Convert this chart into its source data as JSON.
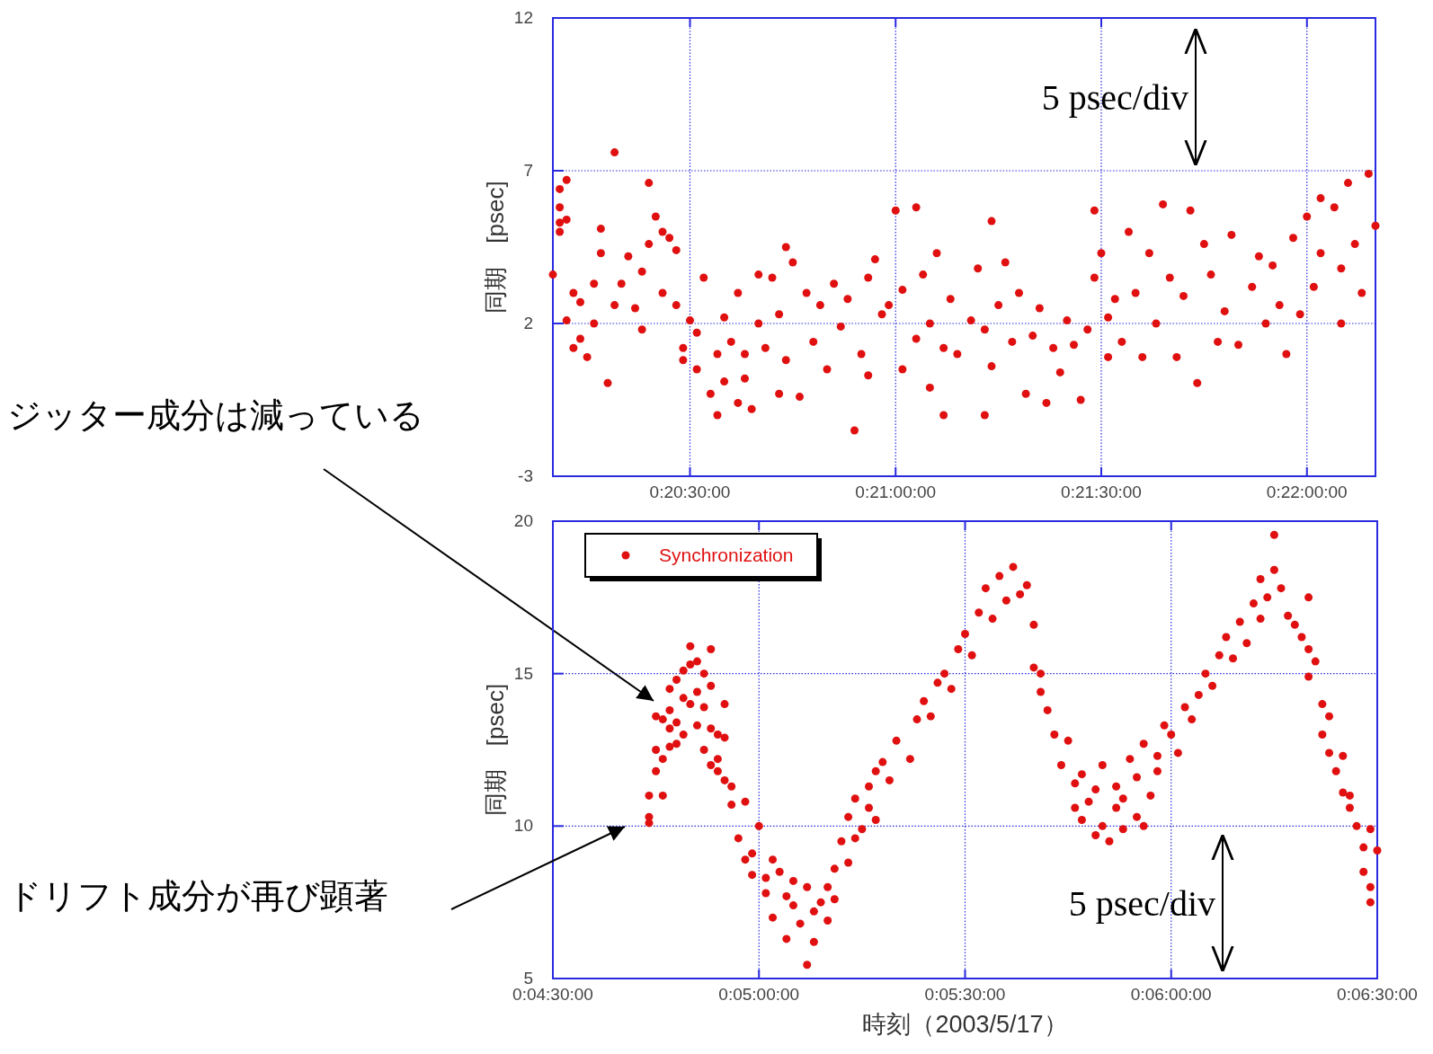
{
  "chart_data": [
    {
      "type": "scatter",
      "ylabel": "同期　[psec]",
      "annotations": [
        "5 psec/div",
        "ジッター成分は減っている"
      ],
      "xlim": [
        "2003-05-17T20:10",
        "2003-05-17T22:10"
      ],
      "ylim": [
        -3,
        12
      ],
      "xticks": [
        {
          "value": "2003-05-17T20:30",
          "label": "0:20:30:00"
        },
        {
          "value": "2003-05-17T21:00",
          "label": "0:21:00:00"
        },
        {
          "value": "2003-05-17T21:30",
          "label": "0:21:30:00"
        },
        {
          "value": "2003-05-17T22:00",
          "label": "0:22:00:00"
        }
      ],
      "yticks": [
        -3,
        2,
        7,
        12
      ],
      "grid": true,
      "marker": "circle",
      "legend": false,
      "series": [
        {
          "color": "#e01010",
          "x": [
            "2003-05-17T20:10",
            "2003-05-17T20:11",
            "2003-05-17T20:11",
            "2003-05-17T20:11",
            "2003-05-17T20:11",
            "2003-05-17T20:12",
            "2003-05-17T20:12",
            "2003-05-17T20:12",
            "2003-05-17T20:13",
            "2003-05-17T20:13",
            "2003-05-17T20:14",
            "2003-05-17T20:14",
            "2003-05-17T20:15",
            "2003-05-17T20:16",
            "2003-05-17T20:16",
            "2003-05-17T20:17",
            "2003-05-17T20:17",
            "2003-05-17T20:18",
            "2003-05-17T20:19",
            "2003-05-17T20:19",
            "2003-05-17T20:20",
            "2003-05-17T20:21",
            "2003-05-17T20:22",
            "2003-05-17T20:24",
            "2003-05-17T20:23",
            "2003-05-17T20:23",
            "2003-05-17T20:24",
            "2003-05-17T20:25",
            "2003-05-17T20:26",
            "2003-05-17T20:26",
            "2003-05-17T20:27",
            "2003-05-17T20:28",
            "2003-05-17T20:28",
            "2003-05-17T20:29",
            "2003-05-17T20:29",
            "2003-05-17T20:30",
            "2003-05-17T20:31",
            "2003-05-17T20:31",
            "2003-05-17T20:32",
            "2003-05-17T20:33",
            "2003-05-17T20:34",
            "2003-05-17T20:34",
            "2003-05-17T20:35",
            "2003-05-17T20:35",
            "2003-05-17T20:36",
            "2003-05-17T20:37",
            "2003-05-17T20:37",
            "2003-05-17T20:38",
            "2003-05-17T20:38",
            "2003-05-17T20:39",
            "2003-05-17T20:40",
            "2003-05-17T20:40",
            "2003-05-17T20:41",
            "2003-05-17T20:42",
            "2003-05-17T20:43",
            "2003-05-17T20:43",
            "2003-05-17T20:44",
            "2003-05-17T20:44",
            "2003-05-17T20:45",
            "2003-05-17T20:46",
            "2003-05-17T20:47",
            "2003-05-17T20:48",
            "2003-05-17T20:49",
            "2003-05-17T20:50",
            "2003-05-17T20:51",
            "2003-05-17T20:52",
            "2003-05-17T20:53",
            "2003-05-17T20:54",
            "2003-05-17T20:55",
            "2003-05-17T20:56",
            "2003-05-17T20:56",
            "2003-05-17T20:57",
            "2003-05-17T20:58",
            "2003-05-17T20:59",
            "2003-05-17T21:00",
            "2003-05-17T21:01",
            "2003-05-17T21:01",
            "2003-05-17T21:03",
            "2003-05-17T21:03",
            "2003-05-17T21:04",
            "2003-05-17T21:05",
            "2003-05-17T21:05",
            "2003-05-17T21:06",
            "2003-05-17T21:07",
            "2003-05-17T21:07",
            "2003-05-17T21:08",
            "2003-05-17T21:09",
            "2003-05-17T21:14",
            "2003-05-17T21:11",
            "2003-05-17T21:12",
            "2003-05-17T21:13",
            "2003-05-17T21:13",
            "2003-05-17T21:14",
            "2003-05-17T21:15",
            "2003-05-17T21:16",
            "2003-05-17T21:17",
            "2003-05-17T21:18",
            "2003-05-17T21:19",
            "2003-05-17T21:20",
            "2003-05-17T21:21",
            "2003-05-17T21:22",
            "2003-05-17T21:23",
            "2003-05-17T21:24",
            "2003-05-17T21:25",
            "2003-05-17T21:26",
            "2003-05-17T21:27",
            "2003-05-17T21:28",
            "2003-05-17T21:29",
            "2003-05-17T21:29",
            "2003-05-17T21:30",
            "2003-05-17T21:31",
            "2003-05-17T21:31",
            "2003-05-17T21:32",
            "2003-05-17T21:33",
            "2003-05-17T21:34",
            "2003-05-17T21:35",
            "2003-05-17T21:36",
            "2003-05-17T21:37",
            "2003-05-17T21:38",
            "2003-05-17T21:39",
            "2003-05-17T21:40",
            "2003-05-17T21:41",
            "2003-05-17T21:42",
            "2003-05-17T21:43",
            "2003-05-17T21:44",
            "2003-05-17T21:45",
            "2003-05-17T21:46",
            "2003-05-17T21:47",
            "2003-05-17T21:48",
            "2003-05-17T21:49",
            "2003-05-17T21:50",
            "2003-05-17T21:52",
            "2003-05-17T21:53",
            "2003-05-17T21:54",
            "2003-05-17T21:55",
            "2003-05-17T21:56",
            "2003-05-17T21:57",
            "2003-05-17T21:58",
            "2003-05-17T21:59",
            "2003-05-17T22:00",
            "2003-05-17T22:01",
            "2003-05-17T22:02",
            "2003-05-17T22:02",
            "2003-05-17T22:05",
            "2003-05-17T22:04",
            "2003-05-17T22:05",
            "2003-05-17T22:06",
            "2003-05-17T22:07",
            "2003-05-17T22:08",
            "2003-05-17T22:09",
            "2003-05-17T22:10"
          ],
          "values": [
            3.6,
            5.0,
            5.3,
            5.8,
            6.4,
            6.7,
            2.1,
            5.4,
            1.2,
            3.0,
            2.7,
            1.5,
            0.9,
            2.0,
            3.3,
            5.1,
            4.3,
            0.05,
            7.6,
            2.6,
            3.3,
            4.2,
            2.5,
            6.6,
            3.7,
            1.8,
            4.6,
            5.5,
            3.0,
            5.0,
            4.8,
            2.6,
            4.4,
            1.2,
            0.8,
            2.1,
            1.7,
            0.5,
            3.5,
            -0.3,
            1.0,
            -1.0,
            2.2,
            0.1,
            1.4,
            3.0,
            -0.6,
            1.0,
            0.2,
            -0.8,
            3.6,
            2.0,
            1.2,
            3.5,
            -0.3,
            2.3,
            4.5,
            0.8,
            4.0,
            -0.4,
            3.0,
            1.4,
            2.6,
            0.5,
            3.3,
            1.9,
            2.8,
            -1.5,
            1.0,
            3.5,
            0.3,
            4.1,
            2.3,
            2.6,
            5.7,
            3.1,
            0.5,
            5.8,
            1.5,
            3.6,
            -0.1,
            2.0,
            4.3,
            -1.0,
            1.2,
            2.8,
            1.0,
            5.35,
            2.1,
            3.8,
            -1.0,
            1.8,
            0.6,
            2.6,
            4.0,
            1.4,
            3.0,
            -0.3,
            1.6,
            2.5,
            -0.6,
            1.2,
            0.4,
            2.1,
            1.3,
            -0.5,
            1.8,
            3.5,
            5.7,
            4.3,
            2.2,
            0.9,
            2.8,
            1.4,
            5.0,
            3.0,
            0.9,
            4.3,
            2.0,
            5.9,
            3.5,
            0.9,
            2.9,
            5.7,
            0.05,
            4.6,
            3.6,
            1.4,
            2.4,
            4.9,
            1.3,
            3.2,
            4.2,
            2.0,
            3.9,
            2.6,
            1.0,
            4.8,
            2.3,
            5.5,
            3.2,
            6.1,
            4.3,
            2.0,
            5.8,
            3.8,
            6.6,
            4.6,
            3.0,
            6.9,
            5.2
          ]
        }
      ]
    },
    {
      "type": "scatter",
      "ylabel": "同期　[psec]",
      "xlabel": "時刻（2003/5/17）",
      "annotations": [
        "5 psec/div",
        "ドリフト成分が再び顕著"
      ],
      "xlim": [
        "2003-05-17T04:30",
        "2003-05-17T06:30"
      ],
      "ylim": [
        5,
        20
      ],
      "xticks": [
        {
          "value": "2003-05-17T04:30",
          "label": "0:04:30:00"
        },
        {
          "value": "2003-05-17T05:00",
          "label": "0:05:00:00"
        },
        {
          "value": "2003-05-17T05:30",
          "label": "0:05:30:00"
        },
        {
          "value": "2003-05-17T06:00",
          "label": "0:06:00:00"
        },
        {
          "value": "2003-05-17T06:30",
          "label": "0:06:30:00"
        }
      ],
      "yticks": [
        5,
        10,
        15,
        20
      ],
      "grid": true,
      "marker": "circle",
      "legend": "top left",
      "series": [
        {
          "name": "Synchronization",
          "color": "#e01010",
          "x": [
            "2003-05-17T04:44",
            "2003-05-17T04:44",
            "2003-05-17T04:44",
            "2003-05-17T04:45",
            "2003-05-17T04:45",
            "2003-05-17T04:45",
            "2003-05-17T04:46",
            "2003-05-17T04:46",
            "2003-05-17T04:46",
            "2003-05-17T04:47",
            "2003-05-17T04:47",
            "2003-05-17T04:47",
            "2003-05-17T04:47",
            "2003-05-17T04:48",
            "2003-05-17T04:48",
            "2003-05-17T04:48",
            "2003-05-17T04:49",
            "2003-05-17T04:49",
            "2003-05-17T04:49",
            "2003-05-17T04:50",
            "2003-05-17T04:50",
            "2003-05-17T04:50",
            "2003-05-17T04:51",
            "2003-05-17T04:51",
            "2003-05-17T04:51",
            "2003-05-17T04:52",
            "2003-05-17T04:52",
            "2003-05-17T04:52",
            "2003-05-17T04:53",
            "2003-05-17T04:53",
            "2003-05-17T04:53",
            "2003-05-17T04:53",
            "2003-05-17T04:54",
            "2003-05-17T04:54",
            "2003-05-17T04:54",
            "2003-05-17T04:55",
            "2003-05-17T04:55",
            "2003-05-17T04:55",
            "2003-05-17T04:56",
            "2003-05-17T04:56",
            "2003-05-17T04:57",
            "2003-05-17T04:58",
            "2003-05-17T04:58",
            "2003-05-17T04:59",
            "2003-05-17T04:59",
            "2003-05-17T05:00",
            "2003-05-17T05:01",
            "2003-05-17T05:01",
            "2003-05-17T05:02",
            "2003-05-17T05:02",
            "2003-05-17T05:03",
            "2003-05-17T05:04",
            "2003-05-17T05:04",
            "2003-05-17T05:05",
            "2003-05-17T05:05",
            "2003-05-17T05:06",
            "2003-05-17T05:07",
            "2003-05-17T05:07",
            "2003-05-17T05:08",
            "2003-05-17T05:08",
            "2003-05-17T05:09",
            "2003-05-17T05:10",
            "2003-05-17T05:10",
            "2003-05-17T05:11",
            "2003-05-17T05:11",
            "2003-05-17T05:12",
            "2003-05-17T05:13",
            "2003-05-17T05:13",
            "2003-05-17T05:14",
            "2003-05-17T05:14",
            "2003-05-17T05:15",
            "2003-05-17T05:16",
            "2003-05-17T05:16",
            "2003-05-17T05:17",
            "2003-05-17T05:17",
            "2003-05-17T05:18",
            "2003-05-17T05:19",
            "2003-05-17T05:20",
            "2003-05-17T05:22",
            "2003-05-17T05:23",
            "2003-05-17T05:24",
            "2003-05-17T05:25",
            "2003-05-17T05:26",
            "2003-05-17T05:27",
            "2003-05-17T05:28",
            "2003-05-17T05:29",
            "2003-05-17T05:30",
            "2003-05-17T05:31",
            "2003-05-17T05:32",
            "2003-05-17T05:33",
            "2003-05-17T05:34",
            "2003-05-17T05:35",
            "2003-05-17T05:36",
            "2003-05-17T05:37",
            "2003-05-17T05:38",
            "2003-05-17T05:39",
            "2003-05-17T05:40",
            "2003-05-17T05:40",
            "2003-05-17T05:41",
            "2003-05-17T05:41",
            "2003-05-17T05:42",
            "2003-05-17T05:43",
            "2003-05-17T05:44",
            "2003-05-17T05:45",
            "2003-05-17T05:46",
            "2003-05-17T05:46",
            "2003-05-17T05:47",
            "2003-05-17T05:47",
            "2003-05-17T05:48",
            "2003-05-17T05:49",
            "2003-05-17T05:49",
            "2003-05-17T05:50",
            "2003-05-17T05:50",
            "2003-05-17T05:51",
            "2003-05-17T05:52",
            "2003-05-17T05:52",
            "2003-05-17T05:53",
            "2003-05-17T05:53",
            "2003-05-17T05:54",
            "2003-05-17T05:55",
            "2003-05-17T05:55",
            "2003-05-17T05:56",
            "2003-05-17T05:56",
            "2003-05-17T05:57",
            "2003-05-17T05:58",
            "2003-05-17T05:58",
            "2003-05-17T05:59",
            "2003-05-17T06:00",
            "2003-05-17T06:01",
            "2003-05-17T06:02",
            "2003-05-17T06:03",
            "2003-05-17T06:04",
            "2003-05-17T06:05",
            "2003-05-17T06:06",
            "2003-05-17T06:07",
            "2003-05-17T06:08",
            "2003-05-17T06:09",
            "2003-05-17T06:10",
            "2003-05-17T06:11",
            "2003-05-17T06:12",
            "2003-05-17T06:13",
            "2003-05-17T06:13",
            "2003-05-17T06:14",
            "2003-05-17T06:15",
            "2003-05-17T06:15",
            "2003-05-17T06:16",
            "2003-05-17T06:17",
            "2003-05-17T06:18",
            "2003-05-17T06:19",
            "2003-05-17T06:20",
            "2003-05-17T06:20",
            "2003-05-17T06:20",
            "2003-05-17T06:21",
            "2003-05-17T06:22",
            "2003-05-17T06:22",
            "2003-05-17T06:23",
            "2003-05-17T06:23",
            "2003-05-17T06:24",
            "2003-05-17T06:25",
            "2003-05-17T06:25",
            "2003-05-17T06:26",
            "2003-05-17T06:26",
            "2003-05-17T06:27",
            "2003-05-17T06:28",
            "2003-05-17T06:28",
            "2003-05-17T06:29",
            "2003-05-17T06:29",
            "2003-05-17T06:29",
            "2003-05-17T06:30"
          ],
          "values": [
            10.1,
            10.3,
            11.0,
            11.8,
            12.5,
            13.6,
            12.2,
            11.0,
            13.5,
            14.5,
            13.2,
            12.6,
            13.8,
            14.8,
            13.4,
            12.7,
            15.1,
            14.2,
            13.0,
            15.3,
            14.0,
            15.9,
            13.3,
            14.4,
            15.4,
            12.5,
            13.9,
            15.0,
            12.0,
            13.2,
            14.6,
            15.8,
            11.8,
            13.0,
            12.2,
            14.0,
            11.5,
            12.9,
            10.7,
            11.3,
            9.6,
            10.8,
            8.9,
            8.4,
            9.1,
            10.0,
            7.8,
            8.3,
            8.9,
            7.0,
            8.5,
            7.7,
            6.3,
            8.2,
            7.4,
            6.8,
            5.45,
            8.0,
            7.2,
            6.2,
            7.5,
            8.0,
            6.9,
            8.6,
            7.6,
            9.5,
            8.8,
            10.3,
            9.6,
            10.9,
            9.9,
            10.6,
            11.3,
            10.2,
            11.8,
            12.1,
            11.5,
            12.8,
            12.2,
            13.5,
            14.1,
            13.6,
            14.7,
            15.0,
            14.5,
            15.8,
            16.3,
            15.6,
            17.0,
            17.8,
            16.8,
            18.2,
            17.4,
            18.5,
            17.6,
            17.9,
            15.2,
            16.6,
            14.4,
            15.0,
            13.8,
            13.0,
            12.0,
            12.8,
            11.4,
            10.6,
            11.7,
            10.2,
            10.8,
            9.7,
            11.2,
            10.0,
            12.0,
            9.5,
            10.6,
            11.3,
            9.9,
            10.9,
            12.2,
            10.3,
            11.6,
            10.0,
            12.7,
            11.0,
            12.3,
            11.8,
            13.3,
            13.0,
            12.4,
            13.9,
            13.5,
            14.3,
            15.0,
            14.6,
            15.6,
            16.2,
            15.5,
            16.7,
            16.0,
            17.3,
            16.8,
            18.1,
            17.5,
            18.4,
            19.55,
            17.8,
            16.9,
            16.6,
            16.2,
            17.5,
            15.8,
            14.9,
            15.4,
            14.0,
            13.0,
            13.6,
            12.4,
            11.8,
            12.3,
            11.1,
            10.6,
            11.0,
            10.0,
            9.3,
            8.5,
            8.0,
            7.5,
            9.9,
            9.2
          ]
        }
      ]
    }
  ]
}
